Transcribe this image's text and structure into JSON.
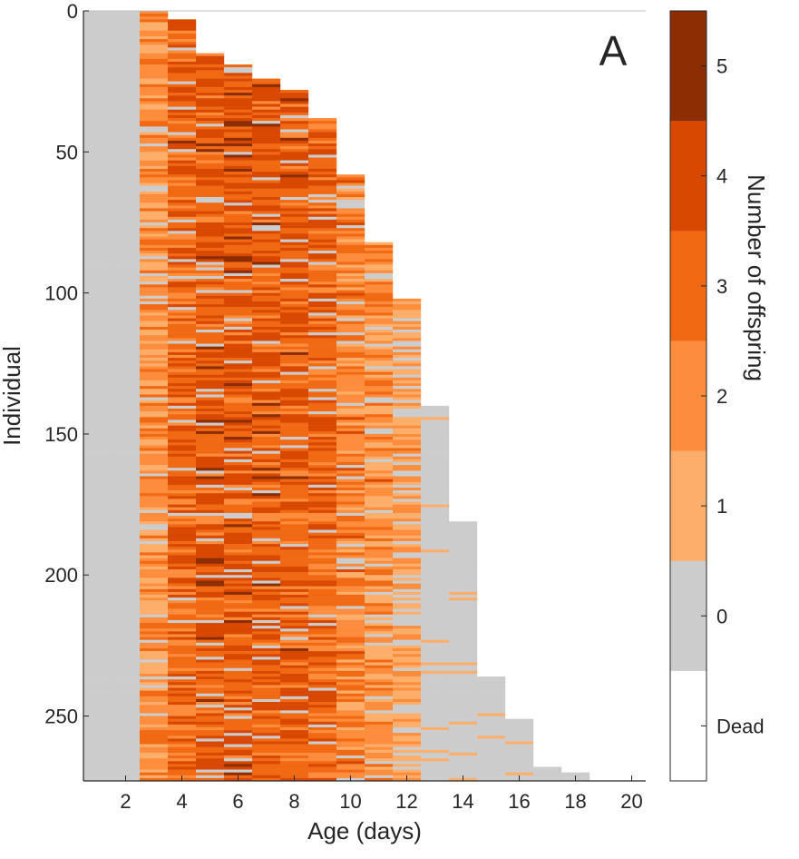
{
  "chart_data": {
    "type": "heatmap",
    "panel_label": "A",
    "xlabel": "Age (days)",
    "ylabel": "Individual",
    "x_ticks": [
      2,
      4,
      6,
      8,
      10,
      12,
      14,
      16,
      18,
      20
    ],
    "y_ticks": [
      0,
      50,
      100,
      150,
      200,
      250
    ],
    "xlim": [
      0.5,
      20.5
    ],
    "ylim": [
      0,
      273
    ],
    "y_reversed": true,
    "n_individuals": 273,
    "colorbar": {
      "label": "Number of offspring",
      "categories": [
        {
          "label": "Dead",
          "value": -1,
          "color": "#ffffff"
        },
        {
          "label": "0",
          "value": 0,
          "color": "#cccccc"
        },
        {
          "label": "1",
          "value": 1,
          "color": "#fdae6b"
        },
        {
          "label": "2",
          "value": 2,
          "color": "#fd8d3c"
        },
        {
          "label": "3",
          "value": 3,
          "color": "#f16913"
        },
        {
          "label": "4",
          "value": 4,
          "color": "#d94801"
        },
        {
          "label": "5",
          "value": 5,
          "color": "#8c2d04"
        }
      ]
    },
    "lifespan_steps": [
      {
        "from_individual": 0,
        "to_individual": 3,
        "age_at_death": 3
      },
      {
        "from_individual": 3,
        "to_individual": 15,
        "age_at_death": 4
      },
      {
        "from_individual": 15,
        "to_individual": 19,
        "age_at_death": 5
      },
      {
        "from_individual": 19,
        "to_individual": 24,
        "age_at_death": 6
      },
      {
        "from_individual": 24,
        "to_individual": 28,
        "age_at_death": 7
      },
      {
        "from_individual": 28,
        "to_individual": 38,
        "age_at_death": 8
      },
      {
        "from_individual": 38,
        "to_individual": 58,
        "age_at_death": 9
      },
      {
        "from_individual": 58,
        "to_individual": 82,
        "age_at_death": 10
      },
      {
        "from_individual": 82,
        "to_individual": 102,
        "age_at_death": 11
      },
      {
        "from_individual": 102,
        "to_individual": 140,
        "age_at_death": 12
      },
      {
        "from_individual": 140,
        "to_individual": 181,
        "age_at_death": 13
      },
      {
        "from_individual": 181,
        "to_individual": 236,
        "age_at_death": 14
      },
      {
        "from_individual": 236,
        "to_individual": 251,
        "age_at_death": 15
      },
      {
        "from_individual": 251,
        "to_individual": 268,
        "age_at_death": 16
      },
      {
        "from_individual": 268,
        "to_individual": 270,
        "age_at_death": 17
      },
      {
        "from_individual": 270,
        "to_individual": 273,
        "age_at_death": 18
      }
    ],
    "typical_offspring_by_age": {
      "1": 0,
      "2": 0,
      "3": 1.8,
      "4": 3.1,
      "5": 3.4,
      "6": 3.5,
      "7": 3.4,
      "8": 3.2,
      "9": 3.0,
      "10": 2.3,
      "11": 1.9,
      "12": 1.1,
      "13": 0.05,
      "14": 0.05,
      "15": 0.05,
      "16": 0.05,
      "17": 0,
      "18": 0,
      "19": 0,
      "20": 0
    }
  }
}
